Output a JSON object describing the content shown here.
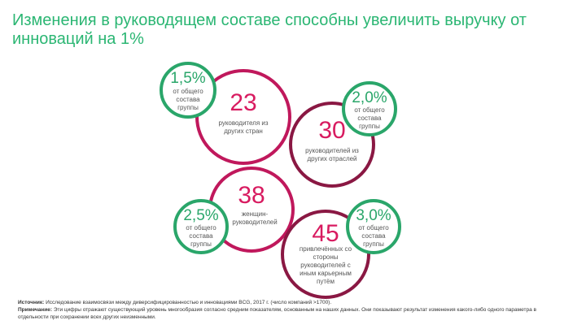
{
  "title": "Изменения в руководящем составе способны увеличить выручку от инноваций на 1%",
  "stats": [
    {
      "value": "23",
      "caption": "руководителя из других стран",
      "share": "1,5%",
      "share_caption": "от общего состава группы"
    },
    {
      "value": "30",
      "caption": "руководителей из других отраслей",
      "share": "2,0%",
      "share_caption": "от общего состава группы"
    },
    {
      "value": "38",
      "caption": "женщин-руководителей",
      "share": "2,5%",
      "share_caption": "от общего состава группы"
    },
    {
      "value": "45",
      "caption": "привлечённых со стороны руководителей с иным карьерным путём",
      "share": "3,0%",
      "share_caption": "от общего состава группы"
    }
  ],
  "footer": {
    "source_label": "Источник:",
    "source_text": "Исследование взаимосвязи между диверсифицированностью и инновациями BCG, 2017 г. (число компаний >1700).",
    "note_label": "Примечание:",
    "note_text": "Эти цифры отражают существующий уровень многообразия согласно средним показателям, основанным на наших данных. Они показывают результат изменения какого-либо одного параметра в отдельности при сохранении всех других неизменными."
  },
  "colors": {
    "title": "#2bb673",
    "magenta": "#c0185c",
    "green": "#2aa66a"
  }
}
